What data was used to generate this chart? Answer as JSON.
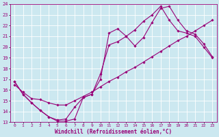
{
  "xlabel": "Windchill (Refroidissement éolien,°C)",
  "xlim": [
    -0.5,
    23.5
  ],
  "ylim": [
    13,
    24
  ],
  "xticks": [
    0,
    1,
    2,
    3,
    4,
    5,
    6,
    7,
    8,
    9,
    10,
    11,
    12,
    13,
    14,
    15,
    16,
    17,
    18,
    19,
    20,
    21,
    22,
    23
  ],
  "yticks": [
    13,
    14,
    15,
    16,
    17,
    18,
    19,
    20,
    21,
    22,
    23,
    24
  ],
  "bg_color": "#cce8f0",
  "grid_color": "#ffffff",
  "line_color": "#990077",
  "line1_x": [
    0,
    1,
    2,
    3,
    4,
    5,
    6,
    7,
    8,
    9,
    10,
    11,
    12,
    13,
    14,
    15,
    16,
    17,
    18,
    19,
    20,
    21,
    22,
    23
  ],
  "line1_y": [
    16.8,
    15.6,
    14.8,
    14.1,
    13.5,
    13.1,
    13.1,
    13.3,
    15.3,
    15.6,
    17.0,
    21.3,
    21.7,
    21.0,
    20.1,
    20.9,
    22.3,
    23.6,
    23.8,
    22.5,
    21.5,
    21.2,
    20.3,
    19.1
  ],
  "line2_x": [
    0,
    1,
    2,
    3,
    4,
    5,
    6,
    7,
    8,
    9,
    10,
    11,
    12,
    13,
    14,
    15,
    16,
    17,
    18,
    19,
    20,
    21,
    22,
    23
  ],
  "line2_y": [
    16.5,
    15.8,
    15.2,
    15.1,
    14.8,
    14.6,
    14.6,
    15.0,
    15.4,
    15.8,
    16.3,
    16.8,
    17.2,
    17.7,
    18.1,
    18.6,
    19.1,
    19.6,
    20.1,
    20.6,
    21.0,
    21.5,
    22.0,
    22.5
  ],
  "line3_x": [
    0,
    1,
    2,
    3,
    4,
    5,
    6,
    7,
    8,
    9,
    10,
    11,
    12,
    13,
    14,
    15,
    16,
    17,
    18,
    19,
    20,
    21,
    22,
    23
  ],
  "line3_y": [
    16.8,
    15.6,
    14.8,
    14.1,
    13.5,
    13.2,
    13.3,
    14.4,
    15.3,
    15.6,
    17.5,
    20.2,
    20.5,
    21.0,
    21.6,
    22.4,
    23.0,
    23.8,
    22.5,
    21.5,
    21.3,
    21.0,
    20.0,
    19.0
  ]
}
